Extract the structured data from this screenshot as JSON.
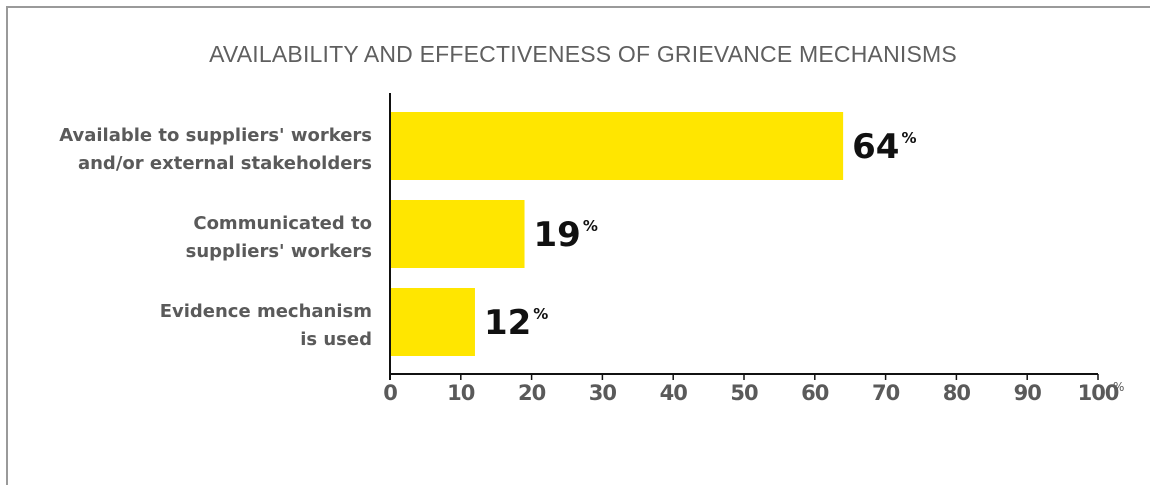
{
  "chart_data": {
    "type": "bar",
    "orientation": "horizontal",
    "title": "AVAILABILITY AND EFFECTIVENESS OF GRIEVANCE MECHANISMS",
    "categories": [
      [
        "Available to suppliers' workers",
        "and/or external stakeholders"
      ],
      [
        "Communicated to",
        "suppliers' workers"
      ],
      [
        "Evidence mechanism",
        "is used"
      ]
    ],
    "values": [
      64,
      19,
      12
    ],
    "value_unit": "%",
    "xlim": [
      0,
      100
    ],
    "xticks": [
      0,
      10,
      20,
      30,
      40,
      50,
      60,
      70,
      80,
      90,
      100
    ],
    "xtick_unit": "%",
    "xlabel": "",
    "ylabel": "",
    "grid": false,
    "bar_color": "#FFE600"
  }
}
